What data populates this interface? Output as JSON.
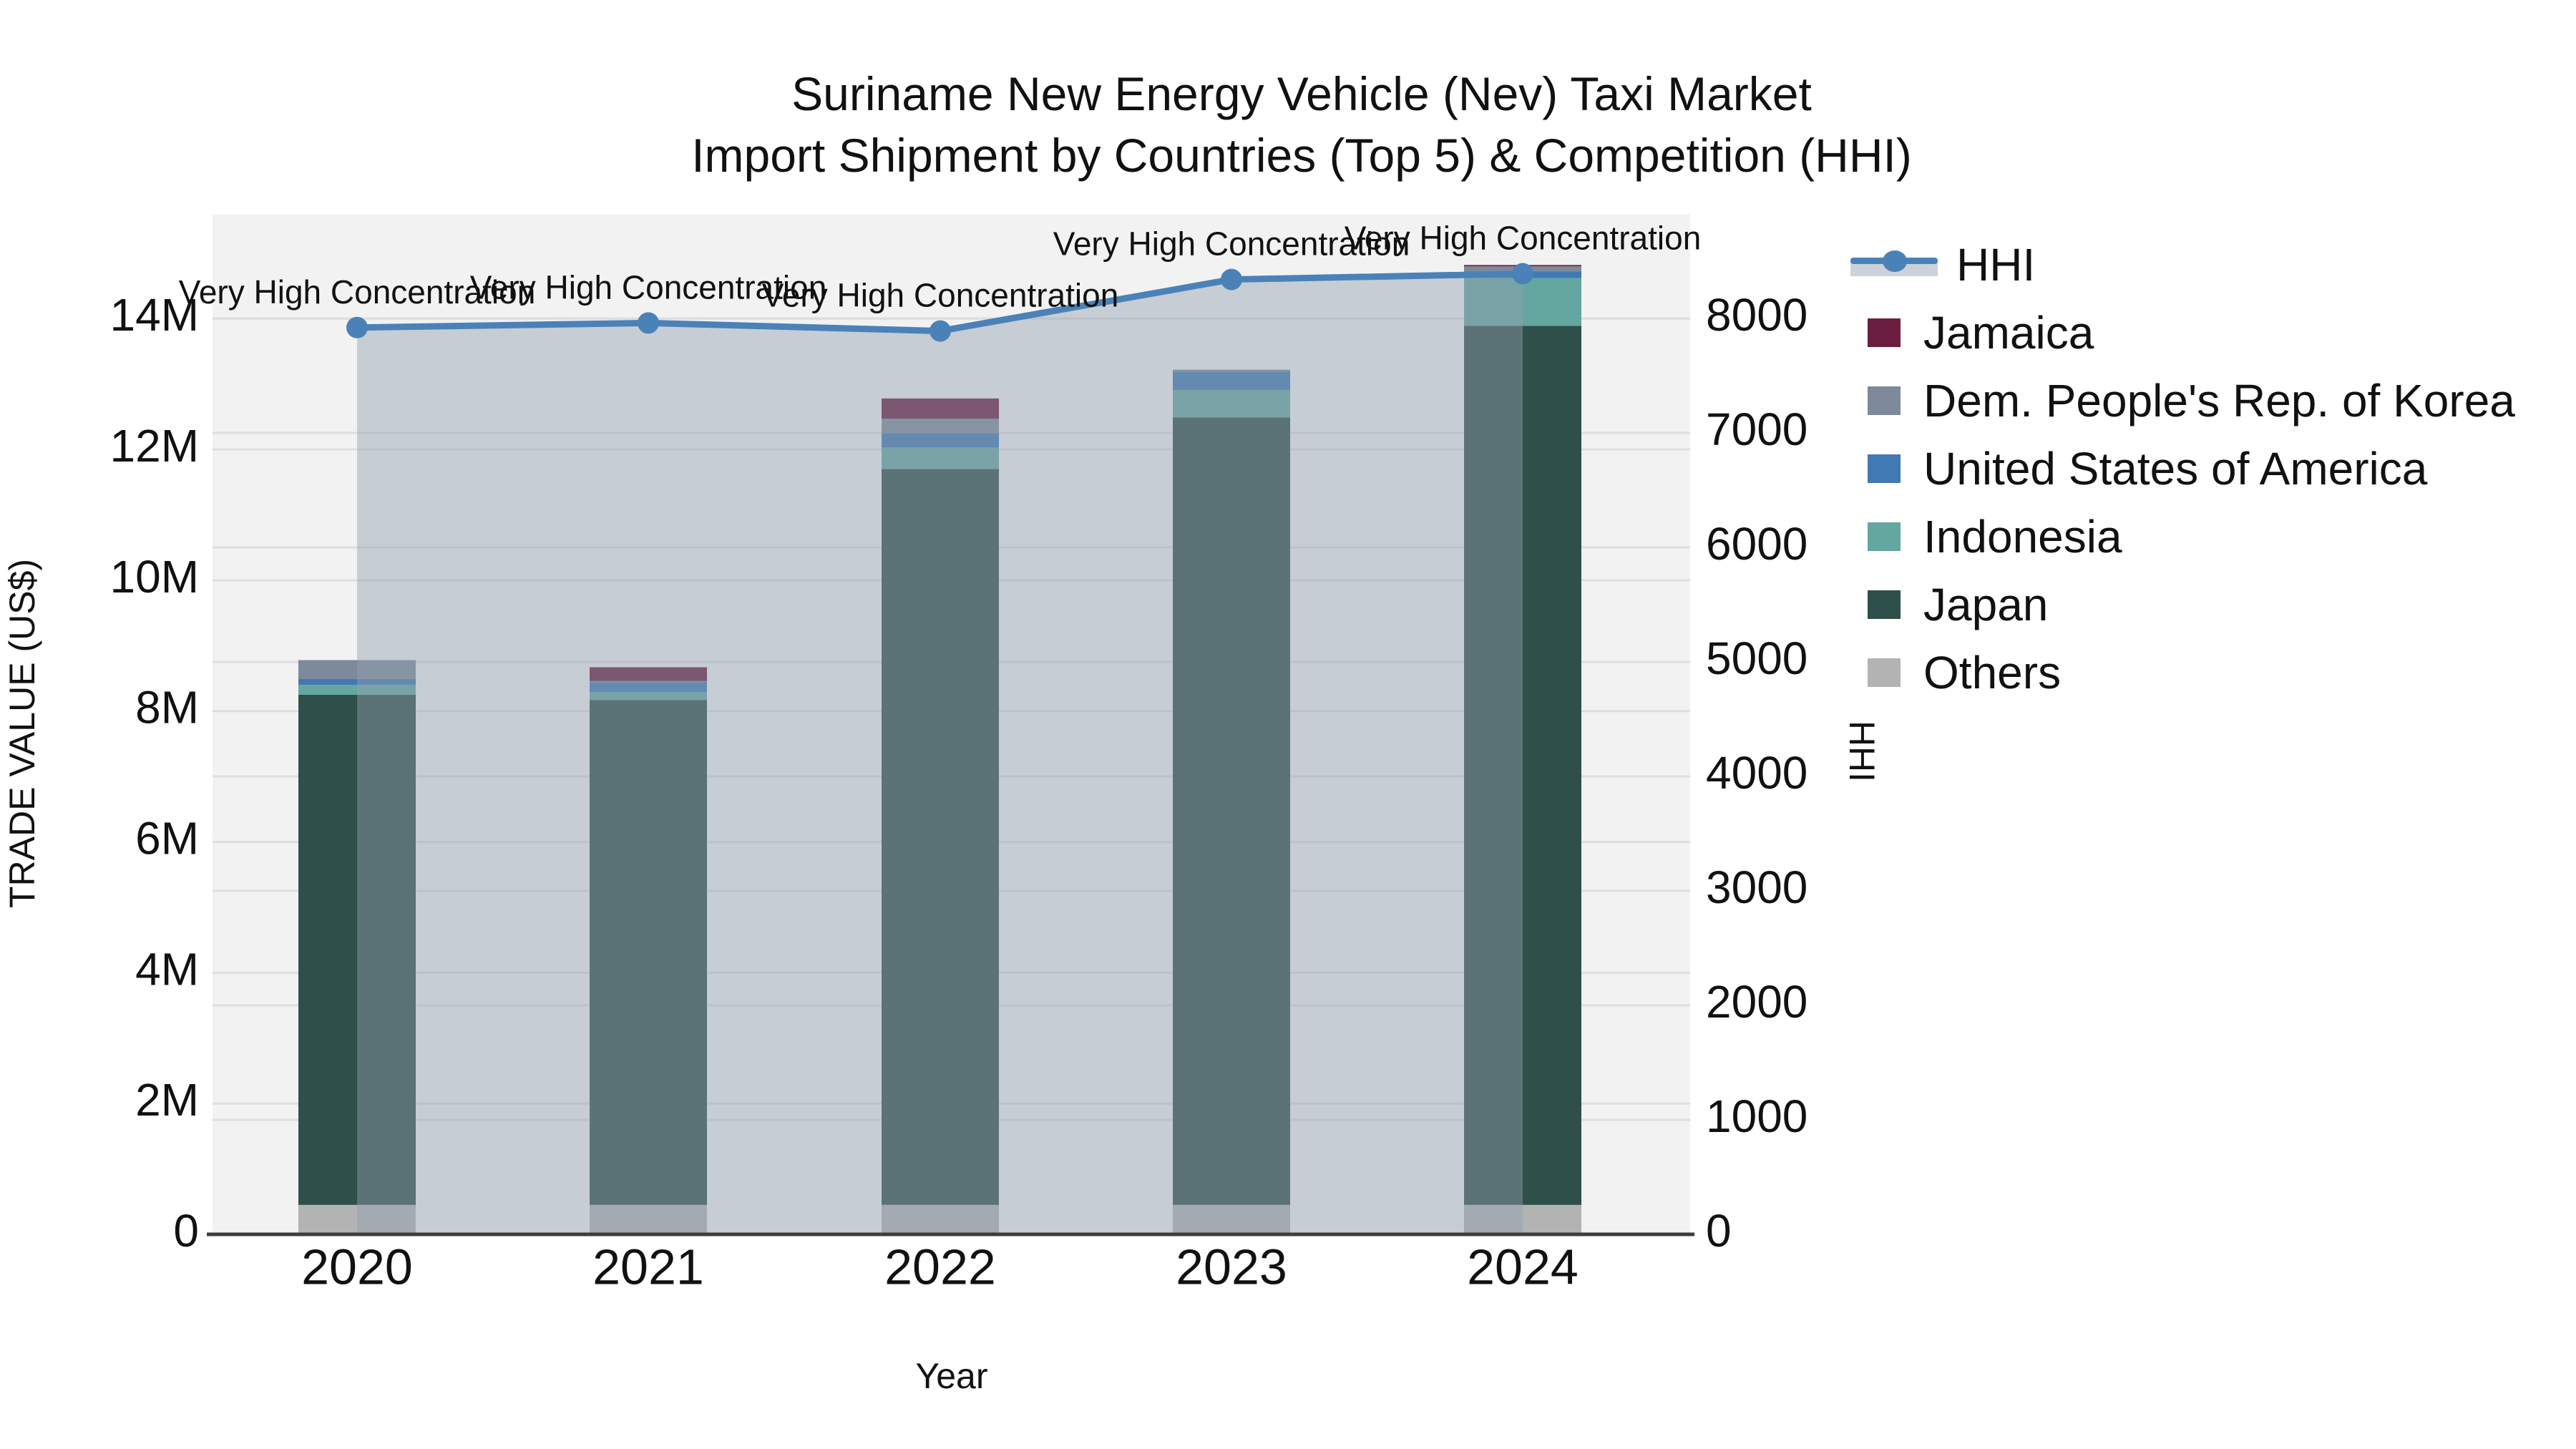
{
  "title": {
    "line1": "Suriname New Energy Vehicle (Nev) Taxi Market",
    "line2": "Import Shipment by Countries (Top 5) & Competition (HHI)"
  },
  "legend": {
    "items": [
      {
        "label": "HHI",
        "type": "line",
        "color": "#4a82b8"
      },
      {
        "label": "Jamaica",
        "type": "swatch",
        "color": "#6b1d3f"
      },
      {
        "label": "Dem. People's Rep. of Korea",
        "type": "swatch",
        "color": "#7d8a9c"
      },
      {
        "label": "United States of America",
        "type": "swatch",
        "color": "#4079b3"
      },
      {
        "label": "Indonesia",
        "type": "swatch",
        "color": "#64a6a0"
      },
      {
        "label": "Japan",
        "type": "swatch",
        "color": "#2f4f4a"
      },
      {
        "label": "Others",
        "type": "swatch",
        "color": "#b3b3b3"
      }
    ]
  },
  "palette": {
    "plot_bg": "#f2f2f2",
    "grid": "#dcdee1",
    "axis_line": "#3d3d3d",
    "text": "#111111",
    "hhi_line": "#4a82b8",
    "area_fill": "rgba(147,160,176,0.45)"
  },
  "chart_data": {
    "type": "combo-stacked-bar-line",
    "categories": [
      "2020",
      "2021",
      "2022",
      "2023",
      "2024"
    ],
    "bar_series": [
      {
        "name": "Others",
        "color": "#b3b3b3",
        "values": [
          450000,
          450000,
          450000,
          450000,
          450000
        ]
      },
      {
        "name": "Japan",
        "color": "#2f4f4a",
        "values": [
          7800000,
          7720000,
          11250000,
          12040000,
          13440000
        ]
      },
      {
        "name": "Indonesia",
        "color": "#64a6a0",
        "values": [
          150000,
          120000,
          330000,
          420000,
          730000
        ]
      },
      {
        "name": "United States of America",
        "color": "#4079b3",
        "values": [
          90000,
          150000,
          220000,
          280000,
          100000
        ]
      },
      {
        "name": "Dem. People's Rep. of Korea",
        "color": "#7d8a9c",
        "values": [
          290000,
          20000,
          220000,
          30000,
          80000
        ]
      },
      {
        "name": "Jamaica",
        "color": "#6b1d3f",
        "values": [
          0,
          210000,
          310000,
          0,
          20000
        ]
      }
    ],
    "bar_totals": [
      8780000,
      8670000,
      12780000,
      13220000,
      14820000
    ],
    "line_series": {
      "name": "HHI",
      "color": "#4a82b8",
      "axis": "right",
      "values": [
        7920,
        7960,
        7890,
        8340,
        8390
      ],
      "area_fill": true
    },
    "annotation_text": "Very High Concentration",
    "annotations_per_point": [
      true,
      true,
      true,
      true,
      true
    ],
    "axes": {
      "left": {
        "title": "TRADE VALUE (US$)",
        "max": 15590000,
        "tick_values": [
          0,
          2000000,
          4000000,
          6000000,
          8000000,
          10000000,
          12000000,
          14000000
        ],
        "tick_labels": [
          "0",
          "2M",
          "4M",
          "6M",
          "8M",
          "10M",
          "12M",
          "14M"
        ]
      },
      "right": {
        "title": "HHI",
        "max": 8906,
        "tick_values": [
          0,
          1000,
          2000,
          3000,
          4000,
          5000,
          6000,
          7000,
          8000
        ],
        "tick_labels": [
          "0",
          "1000",
          "2000",
          "3000",
          "4000",
          "5000",
          "6000",
          "7000",
          "8000"
        ]
      },
      "x": {
        "title": "Year",
        "tick_labels": [
          "2020",
          "2021",
          "2022",
          "2023",
          "2024"
        ]
      }
    },
    "grid": true,
    "legend_position": "right"
  }
}
